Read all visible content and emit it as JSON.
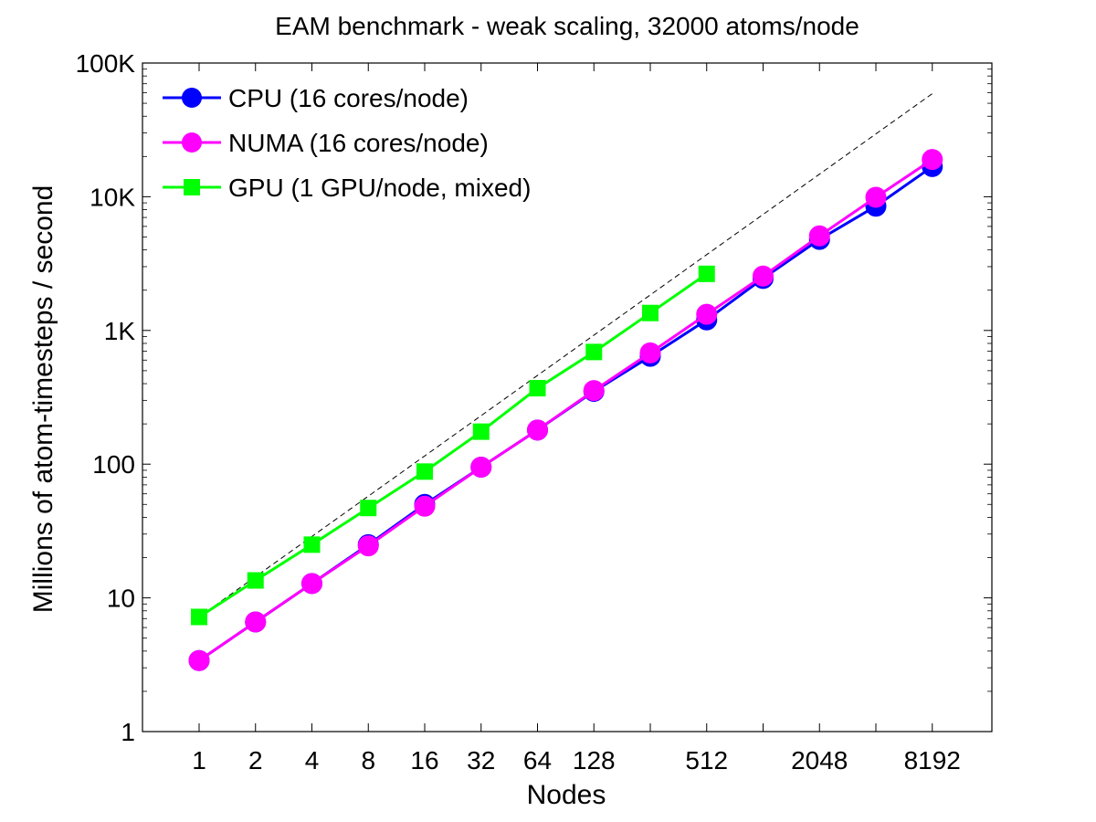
{
  "chart_data": {
    "type": "line",
    "title": "EAM benchmark - weak scaling, 32000 atoms/node",
    "xlabel": "Nodes",
    "ylabel": "Millions of atom-timesteps / second",
    "xscale": "log2",
    "yscale": "log10",
    "xlim": [
      0.5,
      16384
    ],
    "ylim": [
      1,
      100000
    ],
    "x_ticks": [
      1,
      2,
      4,
      8,
      16,
      32,
      64,
      128,
      256,
      512,
      1024,
      2048,
      4096,
      8192
    ],
    "x_tick_labels": [
      "1",
      "2",
      "4",
      "8",
      "16",
      "32",
      "64",
      "128",
      "",
      "512",
      "",
      "2048",
      "",
      "8192"
    ],
    "y_ticks": [
      1,
      10,
      100,
      1000,
      10000,
      100000
    ],
    "y_tick_labels": [
      "1",
      "10",
      "100",
      "1K",
      "10K",
      "100K"
    ],
    "grid": false,
    "legend_position": "top-left",
    "series": [
      {
        "name": "CPU (16 cores/node)",
        "color": "#0000ff",
        "marker": "circle",
        "x": [
          1,
          2,
          4,
          8,
          16,
          32,
          64,
          128,
          256,
          512,
          1024,
          2048,
          4096,
          8192
        ],
        "values": [
          3.4,
          6.6,
          12.8,
          25,
          50,
          95,
          180,
          350,
          640,
          1200,
          2450,
          4800,
          8500,
          16800
        ]
      },
      {
        "name": "NUMA (16 cores/node)",
        "color": "#ff00ff",
        "marker": "circle",
        "x": [
          1,
          2,
          4,
          8,
          16,
          32,
          64,
          128,
          256,
          512,
          1024,
          2048,
          4096,
          8192
        ],
        "values": [
          3.4,
          6.6,
          12.8,
          24.5,
          48.5,
          95,
          180,
          355,
          680,
          1320,
          2550,
          5100,
          9900,
          19000
        ]
      },
      {
        "name": "GPU (1 GPU/node, mixed)",
        "color": "#00ff00",
        "marker": "square",
        "x": [
          1,
          2,
          4,
          8,
          16,
          32,
          64,
          128,
          256,
          512
        ],
        "values": [
          7.2,
          13.5,
          25,
          47,
          88,
          175,
          370,
          690,
          1350,
          2650
        ]
      }
    ],
    "reference_line": {
      "style": "dashed",
      "color": "#000000",
      "x": [
        1,
        8192
      ],
      "values": [
        7.2,
        59000
      ]
    }
  }
}
